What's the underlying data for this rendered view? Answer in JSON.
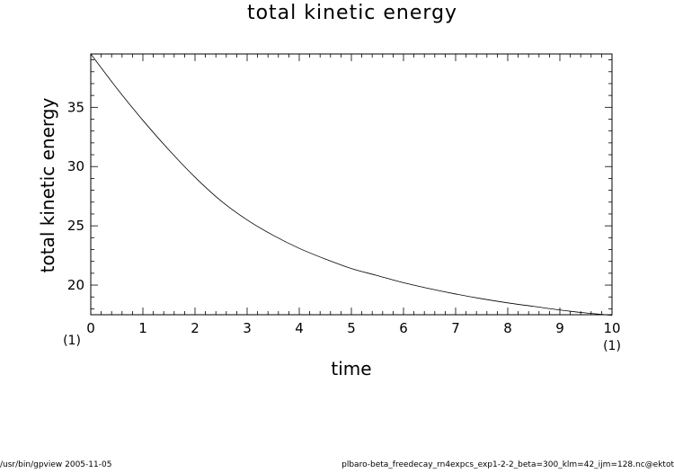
{
  "chart_data": {
    "type": "line",
    "title": "total kinetic energy",
    "xlabel": "time",
    "ylabel": "total kinetic energy",
    "xlim": [
      0,
      10
    ],
    "ylim": [
      17.5,
      39.5
    ],
    "x_ticks": [
      0,
      1,
      2,
      3,
      4,
      5,
      6,
      7,
      8,
      9,
      10
    ],
    "y_ticks": [
      20,
      25,
      30,
      35
    ],
    "x_unit_left": "(1)",
    "x_unit_right": "(1)",
    "grid": false,
    "series": [
      {
        "x": [
          0,
          0.5,
          1,
          1.5,
          2,
          2.5,
          3,
          3.5,
          4,
          4.5,
          5,
          5.5,
          6,
          6.5,
          7,
          7.5,
          8,
          8.5,
          9,
          9.5,
          10
        ],
        "values": [
          39.5,
          36.6,
          33.9,
          31.4,
          29.1,
          27.1,
          25.5,
          24.2,
          23.1,
          22.2,
          21.4,
          20.8,
          20.2,
          19.7,
          19.25,
          18.85,
          18.5,
          18.2,
          17.9,
          17.65,
          17.45
        ]
      }
    ]
  },
  "footer": {
    "left": "/usr/bin/gpview   2005-11-05",
    "right": "plbaro-beta_freedecay_rn4expcs_exp1-2-2_beta=300_klm=42_ijm=128.nc@ektot"
  }
}
